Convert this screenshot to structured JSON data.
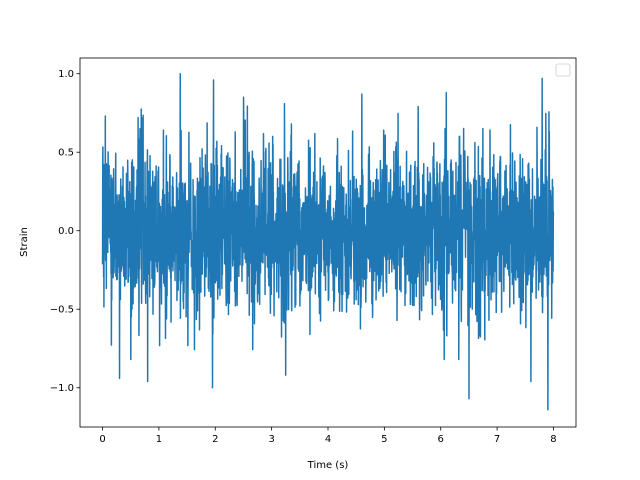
{
  "chart_data": {
    "type": "line",
    "title": "",
    "xlabel": "Time (s)",
    "ylabel": "Strain",
    "xlim": [
      -0.4,
      8.4
    ],
    "ylim": [
      -1.25,
      1.1
    ],
    "xticks": [
      0,
      1,
      2,
      3,
      4,
      5,
      6,
      7,
      8
    ],
    "yticks": [
      -1.0,
      -0.5,
      0.0,
      0.5,
      1.0
    ],
    "xtick_labels": [
      "0",
      "1",
      "2",
      "3",
      "4",
      "5",
      "6",
      "7",
      "8"
    ],
    "ytick_labels": [
      "−1.0",
      "−0.5",
      "0.0",
      "0.5",
      "1.0"
    ],
    "grid": false,
    "legend": {
      "placement": "top-right",
      "entries": []
    },
    "series": [
      {
        "color": "#1f77b4",
        "x_range": [
          0,
          8
        ],
        "extrema": [
          {
            "x": 0.05,
            "y": 0.73
          },
          {
            "x": 0.3,
            "y": -0.94
          },
          {
            "x": 0.63,
            "y": 0.72
          },
          {
            "x": 0.8,
            "y": -0.96
          },
          {
            "x": 1.38,
            "y": 1.0
          },
          {
            "x": 1.95,
            "y": -1.0
          },
          {
            "x": 1.97,
            "y": 0.96
          },
          {
            "x": 2.5,
            "y": 0.85
          },
          {
            "x": 3.25,
            "y": -0.92
          },
          {
            "x": 4.6,
            "y": 0.87
          },
          {
            "x": 5.6,
            "y": 0.79
          },
          {
            "x": 6.1,
            "y": 0.88
          },
          {
            "x": 6.5,
            "y": -1.07
          },
          {
            "x": 7.6,
            "y": -0.96
          },
          {
            "x": 7.8,
            "y": 0.97
          },
          {
            "x": 7.9,
            "y": -1.14
          }
        ]
      }
    ]
  }
}
